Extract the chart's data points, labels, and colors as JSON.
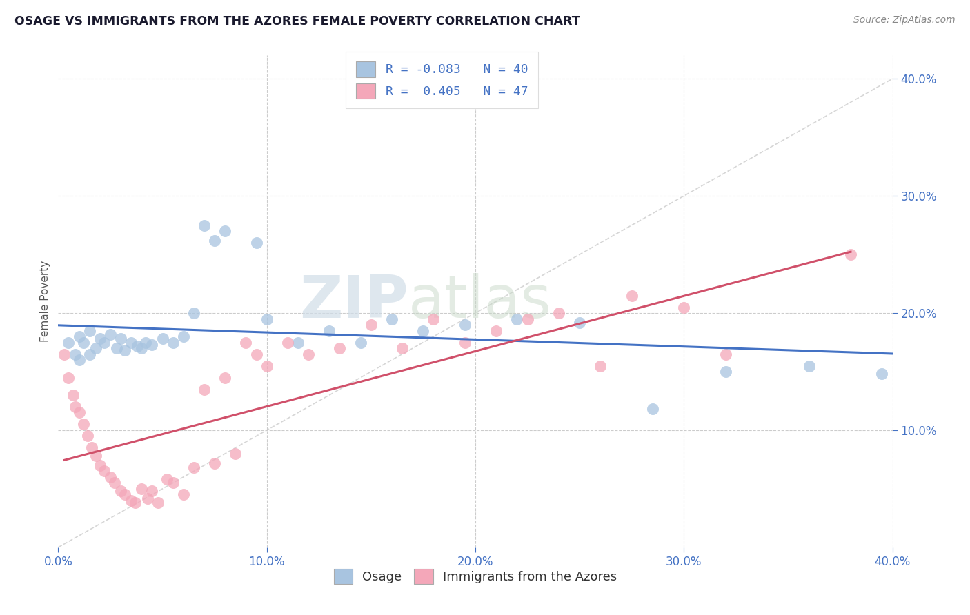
{
  "title": "OSAGE VS IMMIGRANTS FROM THE AZORES FEMALE POVERTY CORRELATION CHART",
  "source": "Source: ZipAtlas.com",
  "ylabel": "Female Poverty",
  "xlim": [
    0.0,
    0.4
  ],
  "ylim": [
    0.0,
    0.42
  ],
  "xtick_labels": [
    "0.0%",
    "",
    "10.0%",
    "",
    "20.0%",
    "",
    "30.0%",
    "",
    "40.0%"
  ],
  "xtick_vals": [
    0.0,
    0.05,
    0.1,
    0.15,
    0.2,
    0.25,
    0.3,
    0.35,
    0.4
  ],
  "ytick_labels": [
    "10.0%",
    "20.0%",
    "30.0%",
    "40.0%"
  ],
  "ytick_vals": [
    0.1,
    0.2,
    0.3,
    0.4
  ],
  "legend_labels": [
    "Osage",
    "Immigrants from the Azores"
  ],
  "osage_color": "#a8c4e0",
  "azores_color": "#f4a7b9",
  "osage_line_color": "#4472c4",
  "azores_line_color": "#d0506a",
  "diagonal_color": "#cccccc",
  "R_osage": -0.083,
  "N_osage": 40,
  "R_azores": 0.405,
  "N_azores": 47,
  "watermark_zip": "ZIP",
  "watermark_atlas": "atlas",
  "osage_x": [
    0.005,
    0.008,
    0.01,
    0.01,
    0.012,
    0.015,
    0.015,
    0.018,
    0.02,
    0.022,
    0.025,
    0.028,
    0.03,
    0.032,
    0.035,
    0.038,
    0.04,
    0.042,
    0.045,
    0.05,
    0.055,
    0.06,
    0.065,
    0.07,
    0.075,
    0.08,
    0.095,
    0.1,
    0.115,
    0.13,
    0.145,
    0.16,
    0.175,
    0.195,
    0.22,
    0.25,
    0.285,
    0.32,
    0.36,
    0.395
  ],
  "osage_y": [
    0.175,
    0.165,
    0.18,
    0.16,
    0.175,
    0.185,
    0.165,
    0.17,
    0.178,
    0.175,
    0.182,
    0.17,
    0.178,
    0.168,
    0.175,
    0.172,
    0.17,
    0.175,
    0.173,
    0.178,
    0.175,
    0.18,
    0.2,
    0.275,
    0.262,
    0.27,
    0.26,
    0.195,
    0.175,
    0.185,
    0.175,
    0.195,
    0.185,
    0.19,
    0.195,
    0.192,
    0.118,
    0.15,
    0.155,
    0.148
  ],
  "azores_x": [
    0.003,
    0.005,
    0.007,
    0.008,
    0.01,
    0.012,
    0.014,
    0.016,
    0.018,
    0.02,
    0.022,
    0.025,
    0.027,
    0.03,
    0.032,
    0.035,
    0.037,
    0.04,
    0.043,
    0.045,
    0.048,
    0.052,
    0.055,
    0.06,
    0.065,
    0.07,
    0.075,
    0.08,
    0.085,
    0.09,
    0.095,
    0.1,
    0.11,
    0.12,
    0.135,
    0.15,
    0.165,
    0.18,
    0.195,
    0.21,
    0.225,
    0.24,
    0.26,
    0.275,
    0.3,
    0.32,
    0.38
  ],
  "azores_y": [
    0.165,
    0.145,
    0.13,
    0.12,
    0.115,
    0.105,
    0.095,
    0.085,
    0.078,
    0.07,
    0.065,
    0.06,
    0.055,
    0.048,
    0.045,
    0.04,
    0.038,
    0.05,
    0.042,
    0.048,
    0.038,
    0.058,
    0.055,
    0.045,
    0.068,
    0.135,
    0.072,
    0.145,
    0.08,
    0.175,
    0.165,
    0.155,
    0.175,
    0.165,
    0.17,
    0.19,
    0.17,
    0.195,
    0.175,
    0.185,
    0.195,
    0.2,
    0.155,
    0.215,
    0.205,
    0.165,
    0.25
  ]
}
